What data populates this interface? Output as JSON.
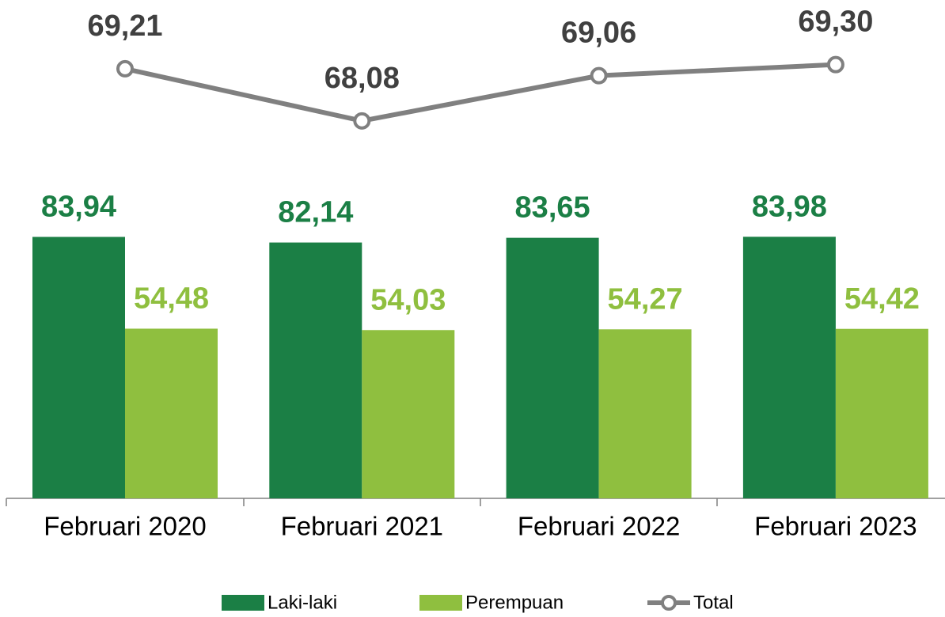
{
  "chart_data": {
    "type": "bar",
    "categories": [
      "Februari 2020",
      "Februari 2021",
      "Februari 2022",
      "Februari 2023"
    ],
    "series": [
      {
        "name": "Laki-laki",
        "color": "#1b7f45",
        "values": [
          83.94,
          82.14,
          83.65,
          83.98
        ],
        "value_labels": [
          "83,94",
          "82,14",
          "83,65",
          "83,98"
        ]
      },
      {
        "name": "Perempuan",
        "color": "#8fbf3f",
        "values": [
          54.48,
          54.03,
          54.27,
          54.42
        ],
        "value_labels": [
          "54,48",
          "54,03",
          "54,27",
          "54,42"
        ]
      },
      {
        "name": "Total",
        "type": "line",
        "axis": "y2",
        "color": "#808080",
        "values": [
          69.21,
          68.08,
          69.06,
          69.3
        ],
        "value_labels": [
          "69,21",
          "68,08",
          "69,06",
          "69,30"
        ]
      }
    ],
    "ylim": [
      0,
      160
    ],
    "y2lim": [
      59.9,
      70.7
    ],
    "legend": "bottom"
  }
}
